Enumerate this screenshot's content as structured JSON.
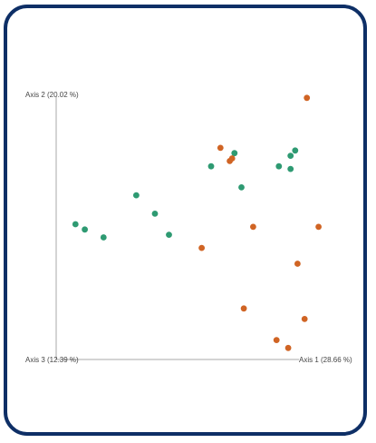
{
  "chart_data": {
    "type": "scatter",
    "subtype": "PCoA-3D-projection",
    "axes": {
      "axis1": "Axis 1 (28.66 %)",
      "axis2": "Axis 2 (20.02 %)",
      "axis3": "Axis 3 (12.39 %)"
    },
    "grid": false,
    "legend": "none",
    "series": [
      {
        "color": "#2e9a72",
        "points": [
          {
            "x": 0.04,
            "y": 0.5
          },
          {
            "x": 0.08,
            "y": 0.48
          },
          {
            "x": 0.16,
            "y": 0.45
          },
          {
            "x": 0.3,
            "y": 0.61
          },
          {
            "x": 0.38,
            "y": 0.54
          },
          {
            "x": 0.44,
            "y": 0.46
          },
          {
            "x": 0.62,
            "y": 0.72
          },
          {
            "x": 0.72,
            "y": 0.77
          },
          {
            "x": 0.75,
            "y": 0.64
          },
          {
            "x": 0.91,
            "y": 0.72
          },
          {
            "x": 0.96,
            "y": 0.71
          },
          {
            "x": 0.96,
            "y": 0.76
          },
          {
            "x": 0.98,
            "y": 0.78
          }
        ]
      },
      {
        "color": "#d06424",
        "points": [
          {
            "x": 0.58,
            "y": 0.41
          },
          {
            "x": 0.66,
            "y": 0.79
          },
          {
            "x": 0.7,
            "y": 0.74
          },
          {
            "x": 0.71,
            "y": 0.75
          },
          {
            "x": 0.8,
            "y": 0.49
          },
          {
            "x": 0.76,
            "y": 0.18
          },
          {
            "x": 0.9,
            "y": 0.06
          },
          {
            "x": 0.95,
            "y": 0.03
          },
          {
            "x": 0.99,
            "y": 0.35
          },
          {
            "x": 1.02,
            "y": 0.14
          },
          {
            "x": 1.03,
            "y": 0.98
          },
          {
            "x": 1.08,
            "y": 0.49
          }
        ]
      }
    ]
  }
}
